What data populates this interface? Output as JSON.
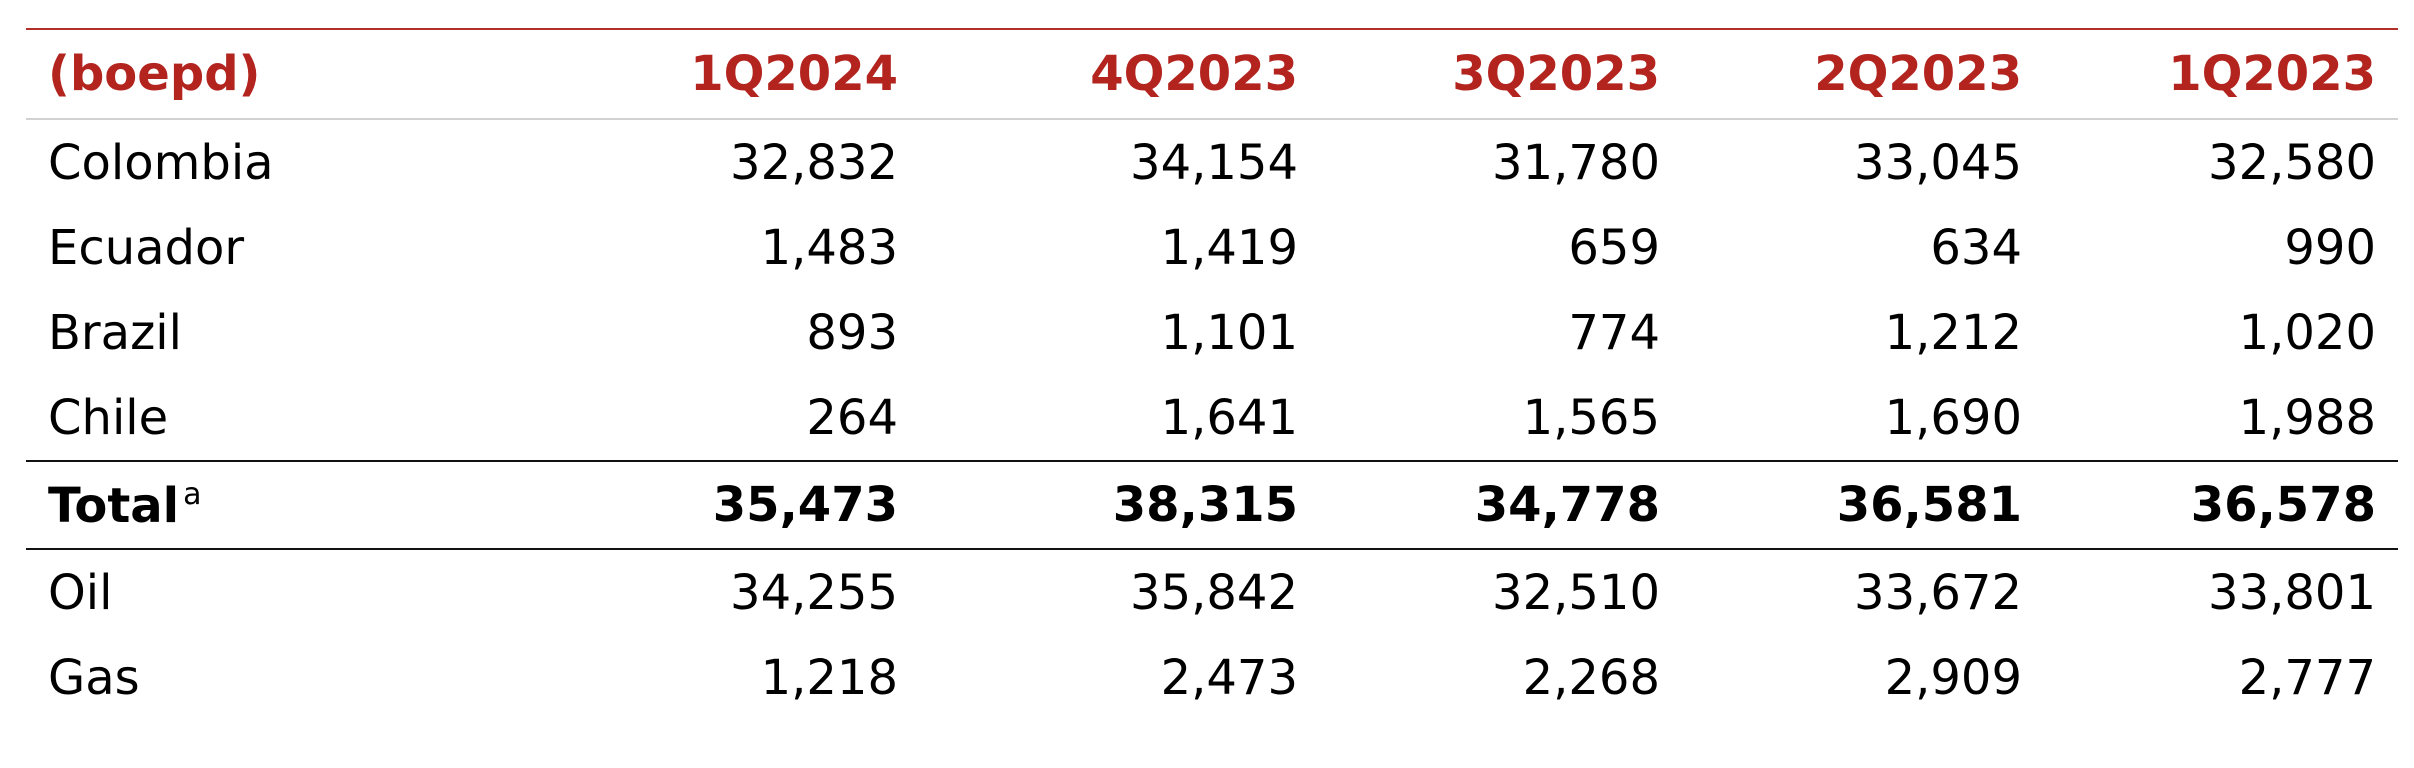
{
  "chart_data": {
    "type": "table",
    "unit_label": "(boepd)",
    "columns": [
      "1Q2024",
      "4Q2023",
      "3Q2023",
      "2Q2023",
      "1Q2023"
    ],
    "rows": [
      {
        "label": "Colombia",
        "values": [
          "32,832",
          "34,154",
          "31,780",
          "33,045",
          "32,580"
        ]
      },
      {
        "label": "Ecuador",
        "values": [
          "1,483",
          "1,419",
          "659",
          "634",
          "990"
        ]
      },
      {
        "label": "Brazil",
        "values": [
          "893",
          "1,101",
          "774",
          "1,212",
          "1,020"
        ]
      },
      {
        "label": "Chile",
        "values": [
          "264",
          "1,641",
          "1,565",
          "1,690",
          "1,988"
        ]
      }
    ],
    "total": {
      "label": "Total",
      "footnote": "a",
      "values": [
        "35,473",
        "38,315",
        "34,778",
        "36,581",
        "36,578"
      ]
    },
    "breakdown": [
      {
        "label": "Oil",
        "values": [
          "34,255",
          "35,842",
          "32,510",
          "33,672",
          "33,801"
        ]
      },
      {
        "label": "Gas",
        "values": [
          "1,218",
          "2,473",
          "2,268",
          "2,909",
          "2,777"
        ]
      }
    ],
    "header_color": "#b3241f"
  }
}
